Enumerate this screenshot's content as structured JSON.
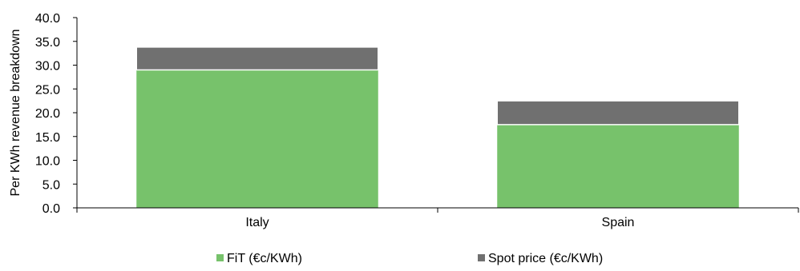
{
  "chart_data": {
    "type": "bar",
    "stacked": true,
    "title": "",
    "xlabel": "",
    "ylabel": "Per KWh revenue breakdown",
    "ylim": [
      0,
      40
    ],
    "ytick_step": 5,
    "ytick_labels": [
      "0.0",
      "5.0",
      "10.0",
      "15.0",
      "20.0",
      "25.0",
      "30.0",
      "35.0",
      "40.0"
    ],
    "grid": false,
    "legend_position": "bottom",
    "categories": [
      "Italy",
      "Spain"
    ],
    "series": [
      {
        "name": "FiT (€c/KWh)",
        "values": [
          29.0,
          17.5
        ],
        "color": "#77c26b"
      },
      {
        "name": "Spot price (€c/KWh)",
        "values": [
          4.8,
          5.0
        ],
        "color": "#707070"
      }
    ]
  }
}
